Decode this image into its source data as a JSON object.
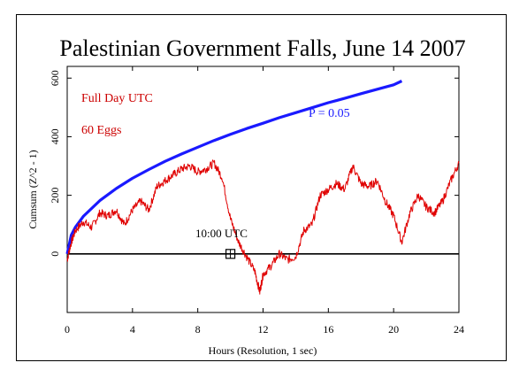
{
  "chart_data": {
    "type": "line",
    "title": "Palestinian Government Falls, June 14 2007",
    "xlabel": "Hours (Resolution, 1 sec)",
    "ylabel": "Cumsum (Z^2 - 1)",
    "xlim": [
      0,
      24
    ],
    "ylim": [
      -200,
      640
    ],
    "xticks": [
      0,
      4,
      8,
      12,
      16,
      20,
      24
    ],
    "yticks": [
      0,
      200,
      400,
      600
    ],
    "annotations": {
      "full_day": "Full Day UTC",
      "eggs": "60 Eggs",
      "p_label": "P = 0.05",
      "event_label": "10:00 UTC"
    },
    "event_marker": {
      "x": 10,
      "y": 0
    },
    "colors": {
      "cumsum": "#e00000",
      "probability": "#1a1aff",
      "axis": "#000000",
      "annotation_red": "#cc0000",
      "annotation_blue": "#1a1aff"
    },
    "series": [
      {
        "name": "P = 0.05",
        "color": "#1a1aff",
        "x": [
          0,
          0.25,
          0.5,
          1,
          2,
          3,
          4,
          5,
          6,
          7,
          8,
          9,
          10,
          11,
          12,
          13,
          14,
          15,
          16,
          17,
          18,
          19,
          20,
          20.5
        ],
        "y": [
          0,
          64,
          91,
          129,
          182,
          223,
          258,
          288,
          316,
          341,
          364,
          387,
          408,
          428,
          446,
          465,
          482,
          499,
          516,
          531,
          547,
          562,
          577,
          590
        ]
      },
      {
        "color": "#e00000",
        "x": [
          0,
          0.2,
          0.5,
          1,
          1.5,
          2,
          2.5,
          3,
          3.5,
          4,
          4.5,
          5,
          5.5,
          6,
          6.5,
          7,
          7.5,
          8,
          8.5,
          9,
          9.5,
          10,
          10.5,
          11,
          11.5,
          11.8,
          12,
          12.5,
          13,
          13.5,
          14,
          14.5,
          15,
          15.5,
          16,
          16.5,
          17,
          17.5,
          18,
          18.5,
          19,
          19.5,
          20,
          20.5,
          21,
          21.5,
          22,
          22.5,
          23,
          23.5,
          24
        ],
        "y": [
          -20,
          30,
          80,
          110,
          90,
          140,
          130,
          150,
          100,
          150,
          180,
          150,
          230,
          250,
          270,
          290,
          300,
          280,
          290,
          310,
          260,
          120,
          40,
          -10,
          -60,
          -130,
          -70,
          -40,
          0,
          -20,
          -10,
          80,
          100,
          200,
          220,
          240,
          220,
          300,
          240,
          230,
          250,
          180,
          130,
          40,
          140,
          200,
          160,
          140,
          180,
          250,
          310
        ]
      }
    ]
  }
}
